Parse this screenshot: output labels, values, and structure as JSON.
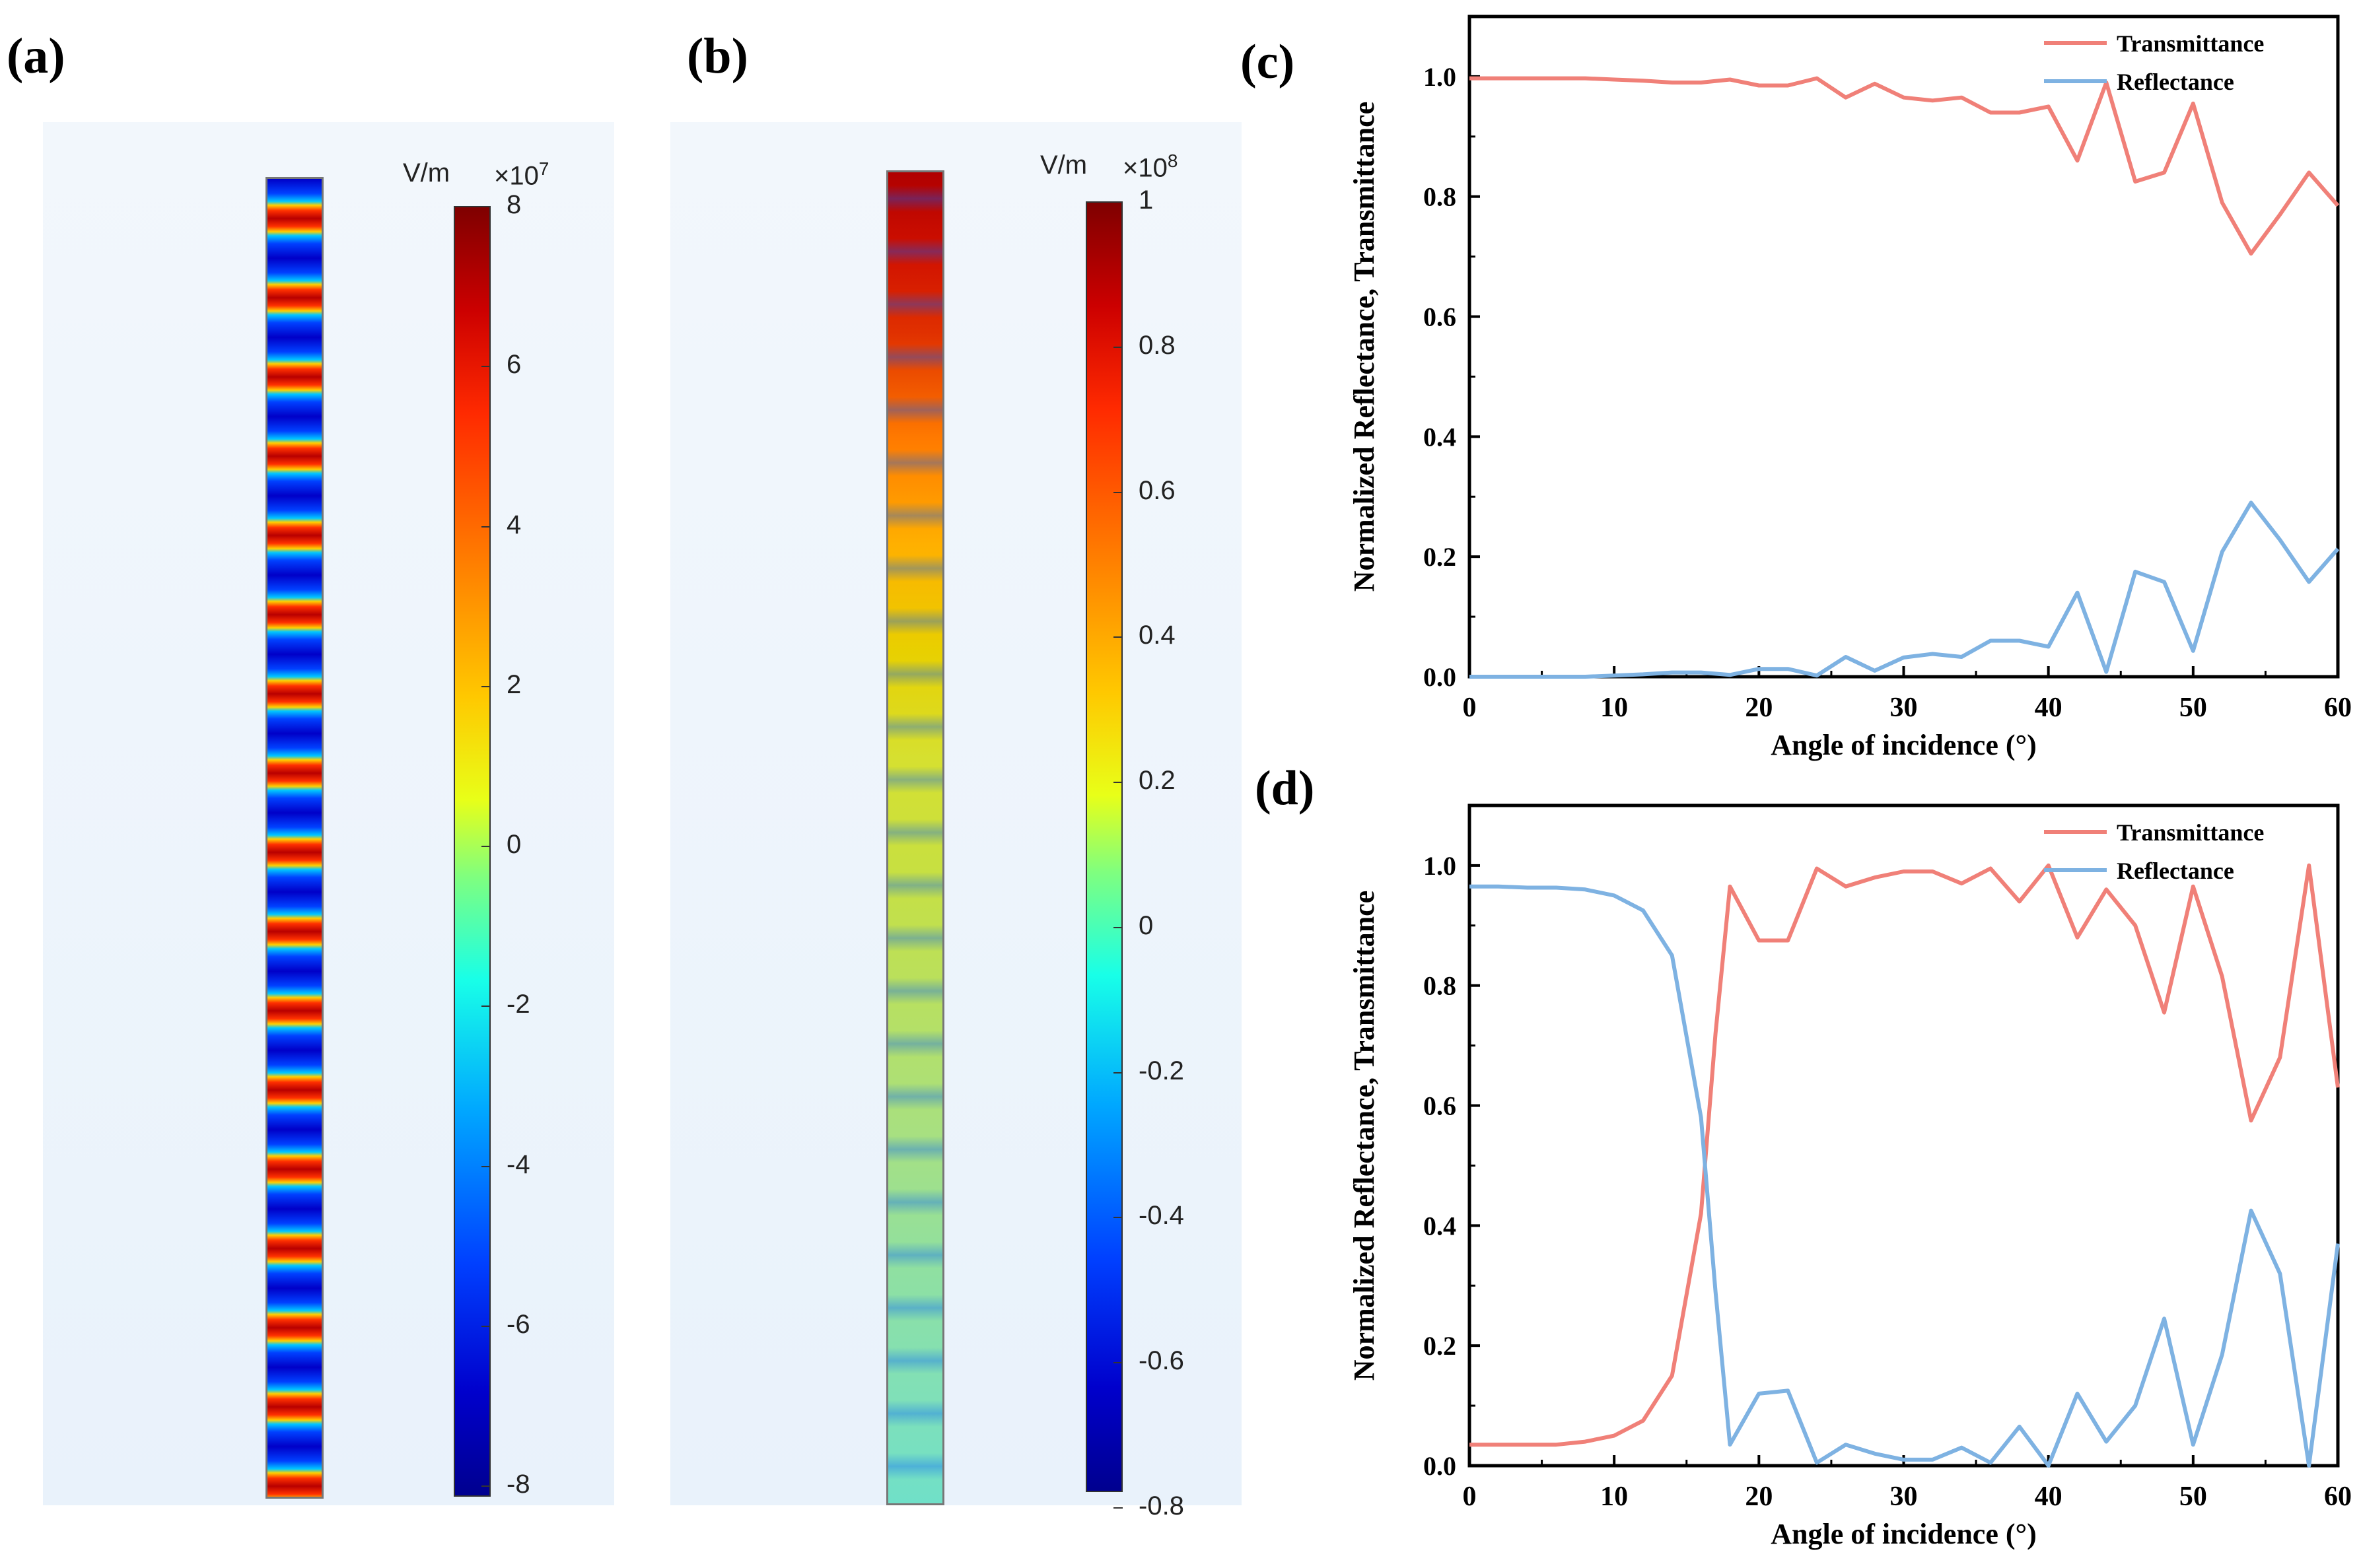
{
  "panels": {
    "a": {
      "label": "(a)",
      "unit": "V/m",
      "multiplier": "×10",
      "exponent": "7",
      "ticks": [
        "8",
        "6",
        "4",
        "2",
        "0",
        "-2",
        "-4",
        "-6",
        "-8"
      ]
    },
    "b": {
      "label": "(b)",
      "unit": "V/m",
      "multiplier": "×10",
      "exponent": "8",
      "ticks": [
        "1",
        "0.8",
        "0.6",
        "0.4",
        "0.2",
        "0",
        "-0.2",
        "-0.4",
        "-0.6",
        "-0.8"
      ]
    }
  },
  "colors": {
    "transmittance": "#f08078",
    "reflectance": "#7eb2e2"
  },
  "chart_data": [
    {
      "panel_label": "(c)",
      "type": "line",
      "xlabel": "Angle of incidence (°)",
      "ylabel": "Normalized Reflectance, Transmittance",
      "xlim": [
        0,
        60
      ],
      "ylim": [
        0,
        1.1
      ],
      "xticks": [
        "0",
        "10",
        "20",
        "30",
        "40",
        "50",
        "60"
      ],
      "yticks": [
        "0.0",
        "0.2",
        "0.4",
        "0.6",
        "0.8",
        "1.0"
      ],
      "legend_position": "top-right",
      "x": [
        0,
        2,
        4,
        6,
        8,
        10,
        12,
        14,
        16,
        18,
        20,
        22,
        24,
        26,
        28,
        30,
        32,
        34,
        36,
        38,
        40,
        42,
        44,
        46,
        48,
        50,
        52,
        54,
        56,
        58,
        60
      ],
      "series": [
        {
          "name": "Transmittance",
          "values": [
            0.997,
            0.997,
            0.997,
            0.997,
            0.997,
            0.995,
            0.993,
            0.99,
            0.99,
            0.995,
            0.985,
            0.985,
            0.997,
            0.965,
            0.988,
            0.965,
            0.96,
            0.965,
            0.94,
            0.94,
            0.95,
            0.86,
            0.99,
            0.825,
            0.84,
            0.955,
            0.79,
            0.705,
            0.77,
            0.84,
            0.785
          ]
        },
        {
          "name": "Reflectance",
          "values": [
            0.0,
            0.0,
            0.0,
            0.0,
            0.0,
            0.002,
            0.004,
            0.007,
            0.007,
            0.003,
            0.013,
            0.013,
            0.002,
            0.033,
            0.01,
            0.032,
            0.038,
            0.033,
            0.06,
            0.06,
            0.05,
            0.14,
            0.008,
            0.175,
            0.158,
            0.043,
            0.208,
            0.29,
            0.228,
            0.158,
            0.213
          ]
        }
      ]
    },
    {
      "panel_label": "(d)",
      "type": "line",
      "xlabel": "Angle of incidence (°)",
      "ylabel": "Normalized Reflectance, Transmittance",
      "xlim": [
        0,
        60
      ],
      "ylim": [
        0,
        1.1
      ],
      "xticks": [
        "0",
        "10",
        "20",
        "30",
        "40",
        "50",
        "60"
      ],
      "yticks": [
        "0.0",
        "0.2",
        "0.4",
        "0.6",
        "0.8",
        "1.0"
      ],
      "legend_position": "top-right",
      "x": [
        0,
        2,
        4,
        6,
        8,
        10,
        12,
        14,
        16,
        17,
        18,
        20,
        22,
        24,
        26,
        28,
        30,
        32,
        34,
        36,
        38,
        40,
        42,
        44,
        46,
        48,
        50,
        52,
        54,
        56,
        58,
        60
      ],
      "series": [
        {
          "name": "Transmittance",
          "values": [
            0.035,
            0.035,
            0.035,
            0.035,
            0.04,
            0.05,
            0.075,
            0.15,
            0.42,
            0.72,
            0.965,
            0.875,
            0.875,
            0.995,
            0.965,
            0.98,
            0.99,
            0.99,
            0.97,
            0.995,
            0.94,
            1.0,
            0.88,
            0.96,
            0.9,
            0.755,
            0.965,
            0.815,
            0.575,
            0.68,
            1.0,
            0.63
          ]
        },
        {
          "name": "Reflectance",
          "values": [
            0.965,
            0.965,
            0.963,
            0.963,
            0.96,
            0.95,
            0.925,
            0.85,
            0.58,
            0.29,
            0.035,
            0.12,
            0.125,
            0.005,
            0.035,
            0.02,
            0.01,
            0.01,
            0.03,
            0.005,
            0.065,
            0.0,
            0.12,
            0.04,
            0.1,
            0.245,
            0.035,
            0.185,
            0.425,
            0.32,
            0.0,
            0.37
          ]
        }
      ]
    }
  ]
}
